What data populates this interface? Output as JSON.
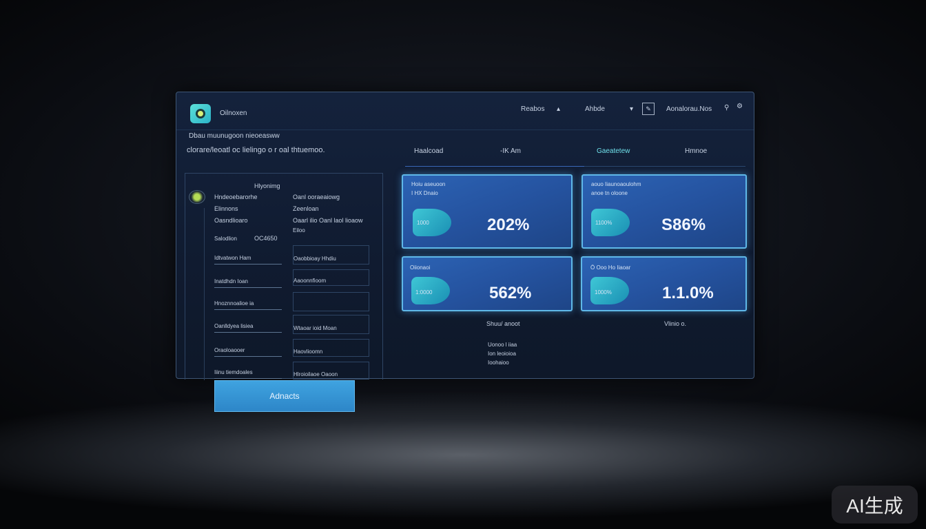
{
  "header": {
    "app_name": "Oilnoxen",
    "nav": [
      "Reabos",
      "Ahbde"
    ],
    "user": "Aonalorau.Nos"
  },
  "intro": {
    "subtitle": "Dbau muunugoon nieoeasww",
    "title": "clorare/leoatl oc lielingo o r oal thtuemoo."
  },
  "tabs": [
    "Haalcoad",
    "-IK Am",
    "Gaeatetew",
    "Hmnoe"
  ],
  "left": {
    "heading": "Hlyonimg",
    "col1": [
      "Hndeoebarorhe",
      "Elinnons",
      "Oasndlioaro",
      "Salodlion",
      "OC4650"
    ],
    "col2": [
      "Oanl ooraeaiowg",
      "Zeenloan",
      "Oaarl ilio Oanl laol lioaow",
      "Eiloo"
    ],
    "fields1": [
      "Idtvatwon Ham",
      "Inatdhdn Ioan",
      "Hnoznnoalioe ia",
      "Oanlldyea lisiea",
      "Oraoloaooer",
      "Iiinu tiemdoales"
    ],
    "fields2": [
      "Oaobbioay Hhdiu",
      "Aaoonnfioom",
      "",
      "Wtaoar ioid Moan",
      "Haovlioomn",
      "Hlroioilaoe Oaoon"
    ]
  },
  "cards": [
    {
      "label1": "Hoiu aseuoon",
      "label2": "I HX Dnaio",
      "badge": "1000",
      "value": "202%"
    },
    {
      "label1": "aouo Iiaunoaoulohm",
      "label2": "anoe tn oloone",
      "badge": "1100%",
      "value": "S86%"
    },
    {
      "label1": "Oiionaoi",
      "label2": "",
      "badge": "1:0000",
      "value": "562%"
    },
    {
      "label1": "Ö Ooo Ho Iiaoar",
      "label2": "",
      "badge": "1000%",
      "value": "1.1.0%"
    }
  ],
  "below": {
    "cap1": "Shuu/ anoot",
    "cap2": "Vlinio o.",
    "lines": [
      "Uonoo l iiaa",
      "Ion leoioioa",
      "Ioohaioo"
    ]
  },
  "button": {
    "label": "Adnacts"
  },
  "watermark": "AI生成"
}
